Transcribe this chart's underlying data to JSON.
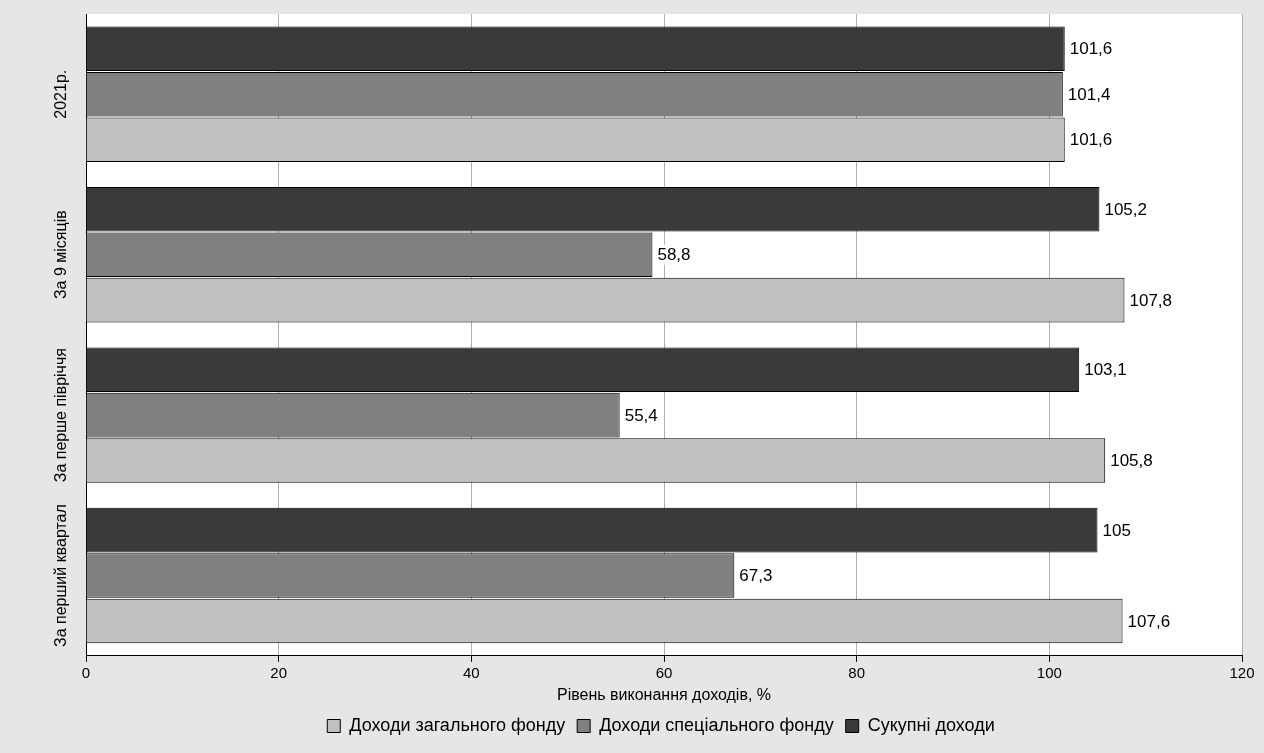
{
  "chart_data": {
    "type": "bar",
    "orientation": "horizontal",
    "xlabel": "Рівень виконання доходів, %",
    "categories": [
      "2021р.",
      "За 9 місяців",
      "За перше півріччя",
      "За перший квартал"
    ],
    "series": [
      {
        "name": "Доходи загального фонду",
        "color": "#c0c0c0",
        "values": [
          101.6,
          107.8,
          105.8,
          107.6
        ],
        "value_labels": [
          "101,6",
          "107,8",
          "105,8",
          "107,6"
        ]
      },
      {
        "name": "Доходи спеціального фонду",
        "color": "#808080",
        "values": [
          101.4,
          58.8,
          55.4,
          67.3
        ],
        "value_labels": [
          "101,4",
          "58,8",
          "55,4",
          "67,3"
        ]
      },
      {
        "name": "Сукупні доходи",
        "color": "#3a3a3a",
        "values": [
          101.6,
          105.2,
          103.1,
          105
        ],
        "value_labels": [
          "101,6",
          "105,2",
          "103,1",
          "105"
        ]
      }
    ],
    "xlim": [
      0,
      120
    ],
    "xticks": [
      0,
      20,
      40,
      60,
      80,
      100,
      120
    ],
    "grid": "x",
    "legend": "bottom"
  }
}
